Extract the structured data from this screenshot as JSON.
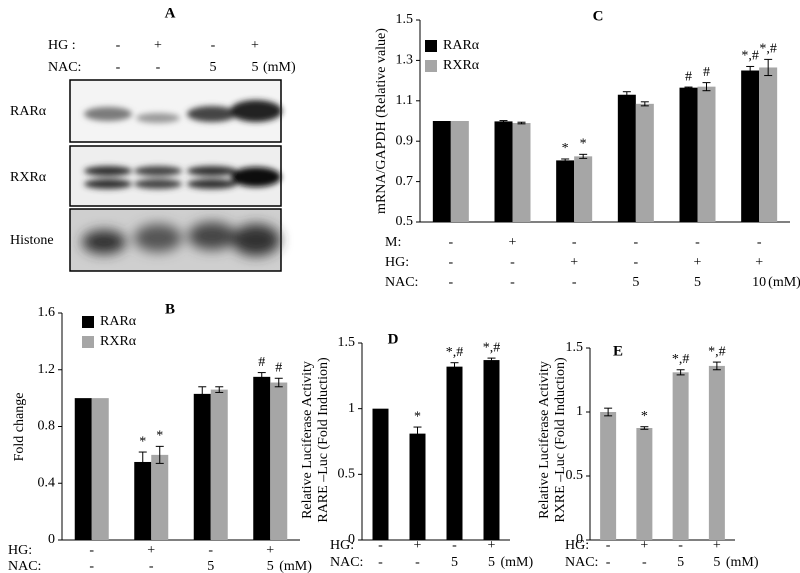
{
  "blot": {
    "title": "A",
    "conditions": [
      {
        "label": "HG :",
        "values": [
          "-",
          "+",
          "-",
          "+"
        ]
      },
      {
        "label": "NAC:",
        "values": [
          "-",
          "-",
          "5",
          "5"
        ]
      }
    ],
    "unit": "(mM)",
    "bands": [
      "RARα",
      "RXRα",
      "Histone"
    ]
  },
  "chart_data": [
    {
      "type": "bar",
      "title": "B",
      "ylabel": "Fold change",
      "ylim": [
        0,
        1.6
      ],
      "yticks": [
        0,
        0.4,
        0.8,
        1.2,
        1.6
      ],
      "series": [
        {
          "name": "RARα",
          "color": "#000000",
          "values": [
            1.0,
            0.55,
            1.03,
            1.15
          ],
          "errors": [
            0,
            0.07,
            0.05,
            0.03
          ],
          "annotations": [
            null,
            "*",
            null,
            "#"
          ]
        },
        {
          "name": "RXRα",
          "color": "#a6a6a6",
          "values": [
            1.0,
            0.6,
            1.06,
            1.11
          ],
          "errors": [
            0,
            0.06,
            0.02,
            0.03
          ],
          "annotations": [
            null,
            "*",
            null,
            "#"
          ]
        }
      ],
      "conditions": [
        {
          "label": "HG:",
          "values": [
            "-",
            "+",
            "-",
            "+"
          ]
        },
        {
          "label": "NAC:",
          "values": [
            "-",
            "-",
            "5",
            "5"
          ]
        }
      ],
      "unit": "(mM)"
    },
    {
      "type": "bar",
      "title": "C",
      "ylabel": "mRNA/GAPDH (Relative value)",
      "ylim": [
        0.5,
        1.5
      ],
      "yticks": [
        0.5,
        0.7,
        0.9,
        1.1,
        1.3,
        1.5
      ],
      "series": [
        {
          "name": "RARα",
          "color": "#000000",
          "values": [
            1.0,
            0.998,
            0.805,
            1.13,
            1.165,
            1.25
          ],
          "errors": [
            0,
            0.004,
            0.007,
            0.015,
            0.003,
            0.02
          ],
          "annotations": [
            null,
            null,
            "*",
            null,
            "#",
            "*,#"
          ]
        },
        {
          "name": "RXRα",
          "color": "#a6a6a6",
          "values": [
            1.0,
            0.99,
            0.825,
            1.085,
            1.17,
            1.265
          ],
          "errors": [
            0,
            0.004,
            0.01,
            0.01,
            0.02,
            0.04
          ],
          "annotations": [
            null,
            null,
            "*",
            null,
            "#",
            "*,#"
          ]
        }
      ],
      "conditions": [
        {
          "label": "M:",
          "values": [
            "-",
            "+",
            "-",
            "-",
            "-",
            "-"
          ]
        },
        {
          "label": "HG:",
          "values": [
            "-",
            "-",
            "+",
            "-",
            "+",
            "+"
          ]
        },
        {
          "label": "NAC:",
          "values": [
            "-",
            "-",
            "-",
            "5",
            "5",
            "10"
          ]
        }
      ],
      "unit": "(mM)"
    },
    {
      "type": "bar",
      "title": "D",
      "ylabel": [
        "Relative Luciferase Activity",
        "RARE –Luc (Fold Induction)"
      ],
      "ylim": [
        0,
        1.5
      ],
      "yticks": [
        0,
        0.5,
        1,
        1.5
      ],
      "series": [
        {
          "color": "#000000",
          "values": [
            1.0,
            0.81,
            1.32,
            1.37
          ],
          "errors": [
            0,
            0.05,
            0.03,
            0.015
          ],
          "annotations": [
            null,
            "*",
            "*,#",
            "*,#"
          ]
        }
      ],
      "conditions": [
        {
          "label": "HG:",
          "values": [
            "-",
            "+",
            "-",
            "+"
          ]
        },
        {
          "label": "NAC:",
          "values": [
            "-",
            "-",
            "5",
            "5"
          ]
        }
      ],
      "unit": "(mM)"
    },
    {
      "type": "bar",
      "title": "E",
      "ylabel": [
        "Relative Luciferase Activity",
        "RXRE –Luc (Fold Induction)"
      ],
      "ylim": [
        0,
        1.5
      ],
      "yticks": [
        0,
        0.5,
        1,
        1.5
      ],
      "series": [
        {
          "color": "#a6a6a6",
          "values": [
            1.0,
            0.875,
            1.31,
            1.36
          ],
          "errors": [
            0.03,
            0.01,
            0.02,
            0.03
          ],
          "annotations": [
            null,
            "*",
            "*,#",
            "*,#"
          ]
        }
      ],
      "conditions": [
        {
          "label": "HG:",
          "values": [
            "-",
            "+",
            "-",
            "+"
          ]
        },
        {
          "label": "NAC:",
          "values": [
            "-",
            "-",
            "5",
            "5"
          ]
        }
      ],
      "unit": "(mM)"
    }
  ]
}
